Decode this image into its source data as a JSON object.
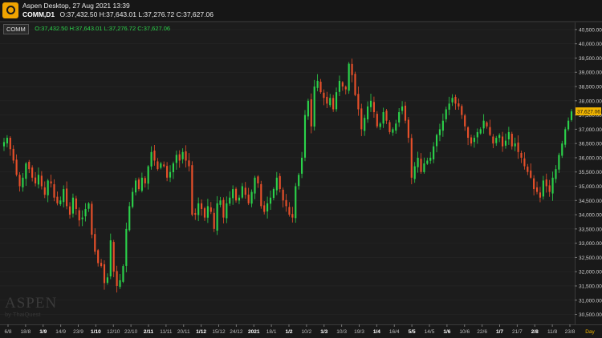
{
  "header": {
    "app_title": "Aspen Desktop, 27 Aug 2021 13:39",
    "symbol_label": "COMM,D1",
    "ohlc_text": "O:37,432.50 H:37,643.01 L:37,276.72 C:37,627.06"
  },
  "legend": {
    "tag": "COMM",
    "ohlc_text": "O:37,432.50 H:37,643.01 L:37,276.72 C:37,627.06"
  },
  "watermark": {
    "main": "ASPEN",
    "sub": "by ThaiQuest"
  },
  "colors": {
    "background": "#1c1c1c",
    "up": "#2bd14a",
    "down": "#e8502a",
    "last_price_badge": "#f0b400",
    "grid": "#262626"
  },
  "chart_data": {
    "type": "candlestick",
    "timeframe_label": "Day",
    "y_tick_labels": [
      "30,500.00",
      "31,000.00",
      "31,500.00",
      "32,000.00",
      "32,500.00",
      "33,000.00",
      "33,500.00",
      "34,000.00",
      "34,500.00",
      "35,000.00",
      "35,500.00",
      "36,000.00",
      "36,500.00",
      "37,000.00",
      "37,500.00",
      "38,000.00",
      "38,500.00",
      "39,000.00",
      "39,500.00",
      "40,000.00",
      "40,500.00"
    ],
    "ylim": [
      30150,
      40750
    ],
    "last_price_label": "37,627.06",
    "last_price": 37627.06,
    "x_tick_labels": [
      {
        "label": "6/8",
        "bold": false
      },
      {
        "label": "18/8",
        "bold": false
      },
      {
        "label": "1/9",
        "bold": true
      },
      {
        "label": "14/9",
        "bold": false
      },
      {
        "label": "23/9",
        "bold": false
      },
      {
        "label": "1/10",
        "bold": true
      },
      {
        "label": "12/10",
        "bold": false
      },
      {
        "label": "22/10",
        "bold": false
      },
      {
        "label": "2/11",
        "bold": true
      },
      {
        "label": "11/11",
        "bold": false
      },
      {
        "label": "20/11",
        "bold": false
      },
      {
        "label": "1/12",
        "bold": true
      },
      {
        "label": "15/12",
        "bold": false
      },
      {
        "label": "24/12",
        "bold": false
      },
      {
        "label": "2021",
        "bold": true
      },
      {
        "label": "18/1",
        "bold": false
      },
      {
        "label": "1/2",
        "bold": true
      },
      {
        "label": "10/2",
        "bold": false
      },
      {
        "label": "1/3",
        "bold": true
      },
      {
        "label": "10/3",
        "bold": false
      },
      {
        "label": "19/3",
        "bold": false
      },
      {
        "label": "1/4",
        "bold": true
      },
      {
        "label": "16/4",
        "bold": false
      },
      {
        "label": "5/5",
        "bold": true
      },
      {
        "label": "14/5",
        "bold": false
      },
      {
        "label": "1/6",
        "bold": true
      },
      {
        "label": "10/6",
        "bold": false
      },
      {
        "label": "22/6",
        "bold": false
      },
      {
        "label": "1/7",
        "bold": true
      },
      {
        "label": "21/7",
        "bold": false
      },
      {
        "label": "2/8",
        "bold": true
      },
      {
        "label": "11/8",
        "bold": false
      },
      {
        "label": "23/8",
        "bold": false
      }
    ],
    "close_path": [
      36550,
      36700,
      36300,
      35900,
      35400,
      35000,
      35300,
      35800,
      35600,
      35300,
      35100,
      35400,
      35000,
      34700,
      35200,
      35100,
      34600,
      34400,
      34500,
      34900,
      34300,
      34000,
      34600,
      34200,
      33800,
      33900,
      34200,
      34400,
      33300,
      32700,
      32300,
      32200,
      31600,
      31800,
      33100,
      32000,
      31500,
      31700,
      32200,
      33500,
      34300,
      34800,
      35200,
      34900,
      35300,
      35100,
      35700,
      36200,
      35900,
      35600,
      35800,
      35700,
      35300,
      35500,
      35800,
      36100,
      35900,
      36200,
      35900,
      35700,
      34000,
      34000,
      34400,
      34200,
      33900,
      34300,
      34100,
      33500,
      34400,
      34500,
      33900,
      34400,
      34600,
      34900,
      34500,
      34600,
      35000,
      34700,
      34400,
      34800,
      35300,
      35100,
      34300,
      34100,
      34400,
      34600,
      34900,
      35300,
      34900,
      34500,
      34300,
      34000,
      33900,
      35000,
      35400,
      36000,
      37500,
      38000,
      37100,
      38500,
      38700,
      38300,
      38100,
      37900,
      38100,
      37700,
      38300,
      38700,
      38500,
      38400,
      39300,
      38900,
      38200,
      37700,
      37000,
      37400,
      37800,
      38000,
      37600,
      37100,
      37200,
      37600,
      37300,
      36900,
      37000,
      37200,
      37600,
      37800,
      37300,
      36700,
      35300,
      35700,
      36000,
      35500,
      35800,
      35900,
      36000,
      36400,
      36800,
      37000,
      37300,
      37700,
      37900,
      38100,
      37900,
      37800,
      37500,
      37100,
      36700,
      36500,
      36700,
      36900,
      37000,
      37300,
      37100,
      36800,
      36500,
      36700,
      36800,
      36400,
      36600,
      36900,
      36400,
      36500,
      36200,
      36000,
      35700,
      35500,
      35300,
      34900,
      34800,
      34600,
      35200,
      35000,
      34800,
      35300,
      35600,
      36100,
      36500,
      37000,
      37300,
      37627.06
    ]
  }
}
